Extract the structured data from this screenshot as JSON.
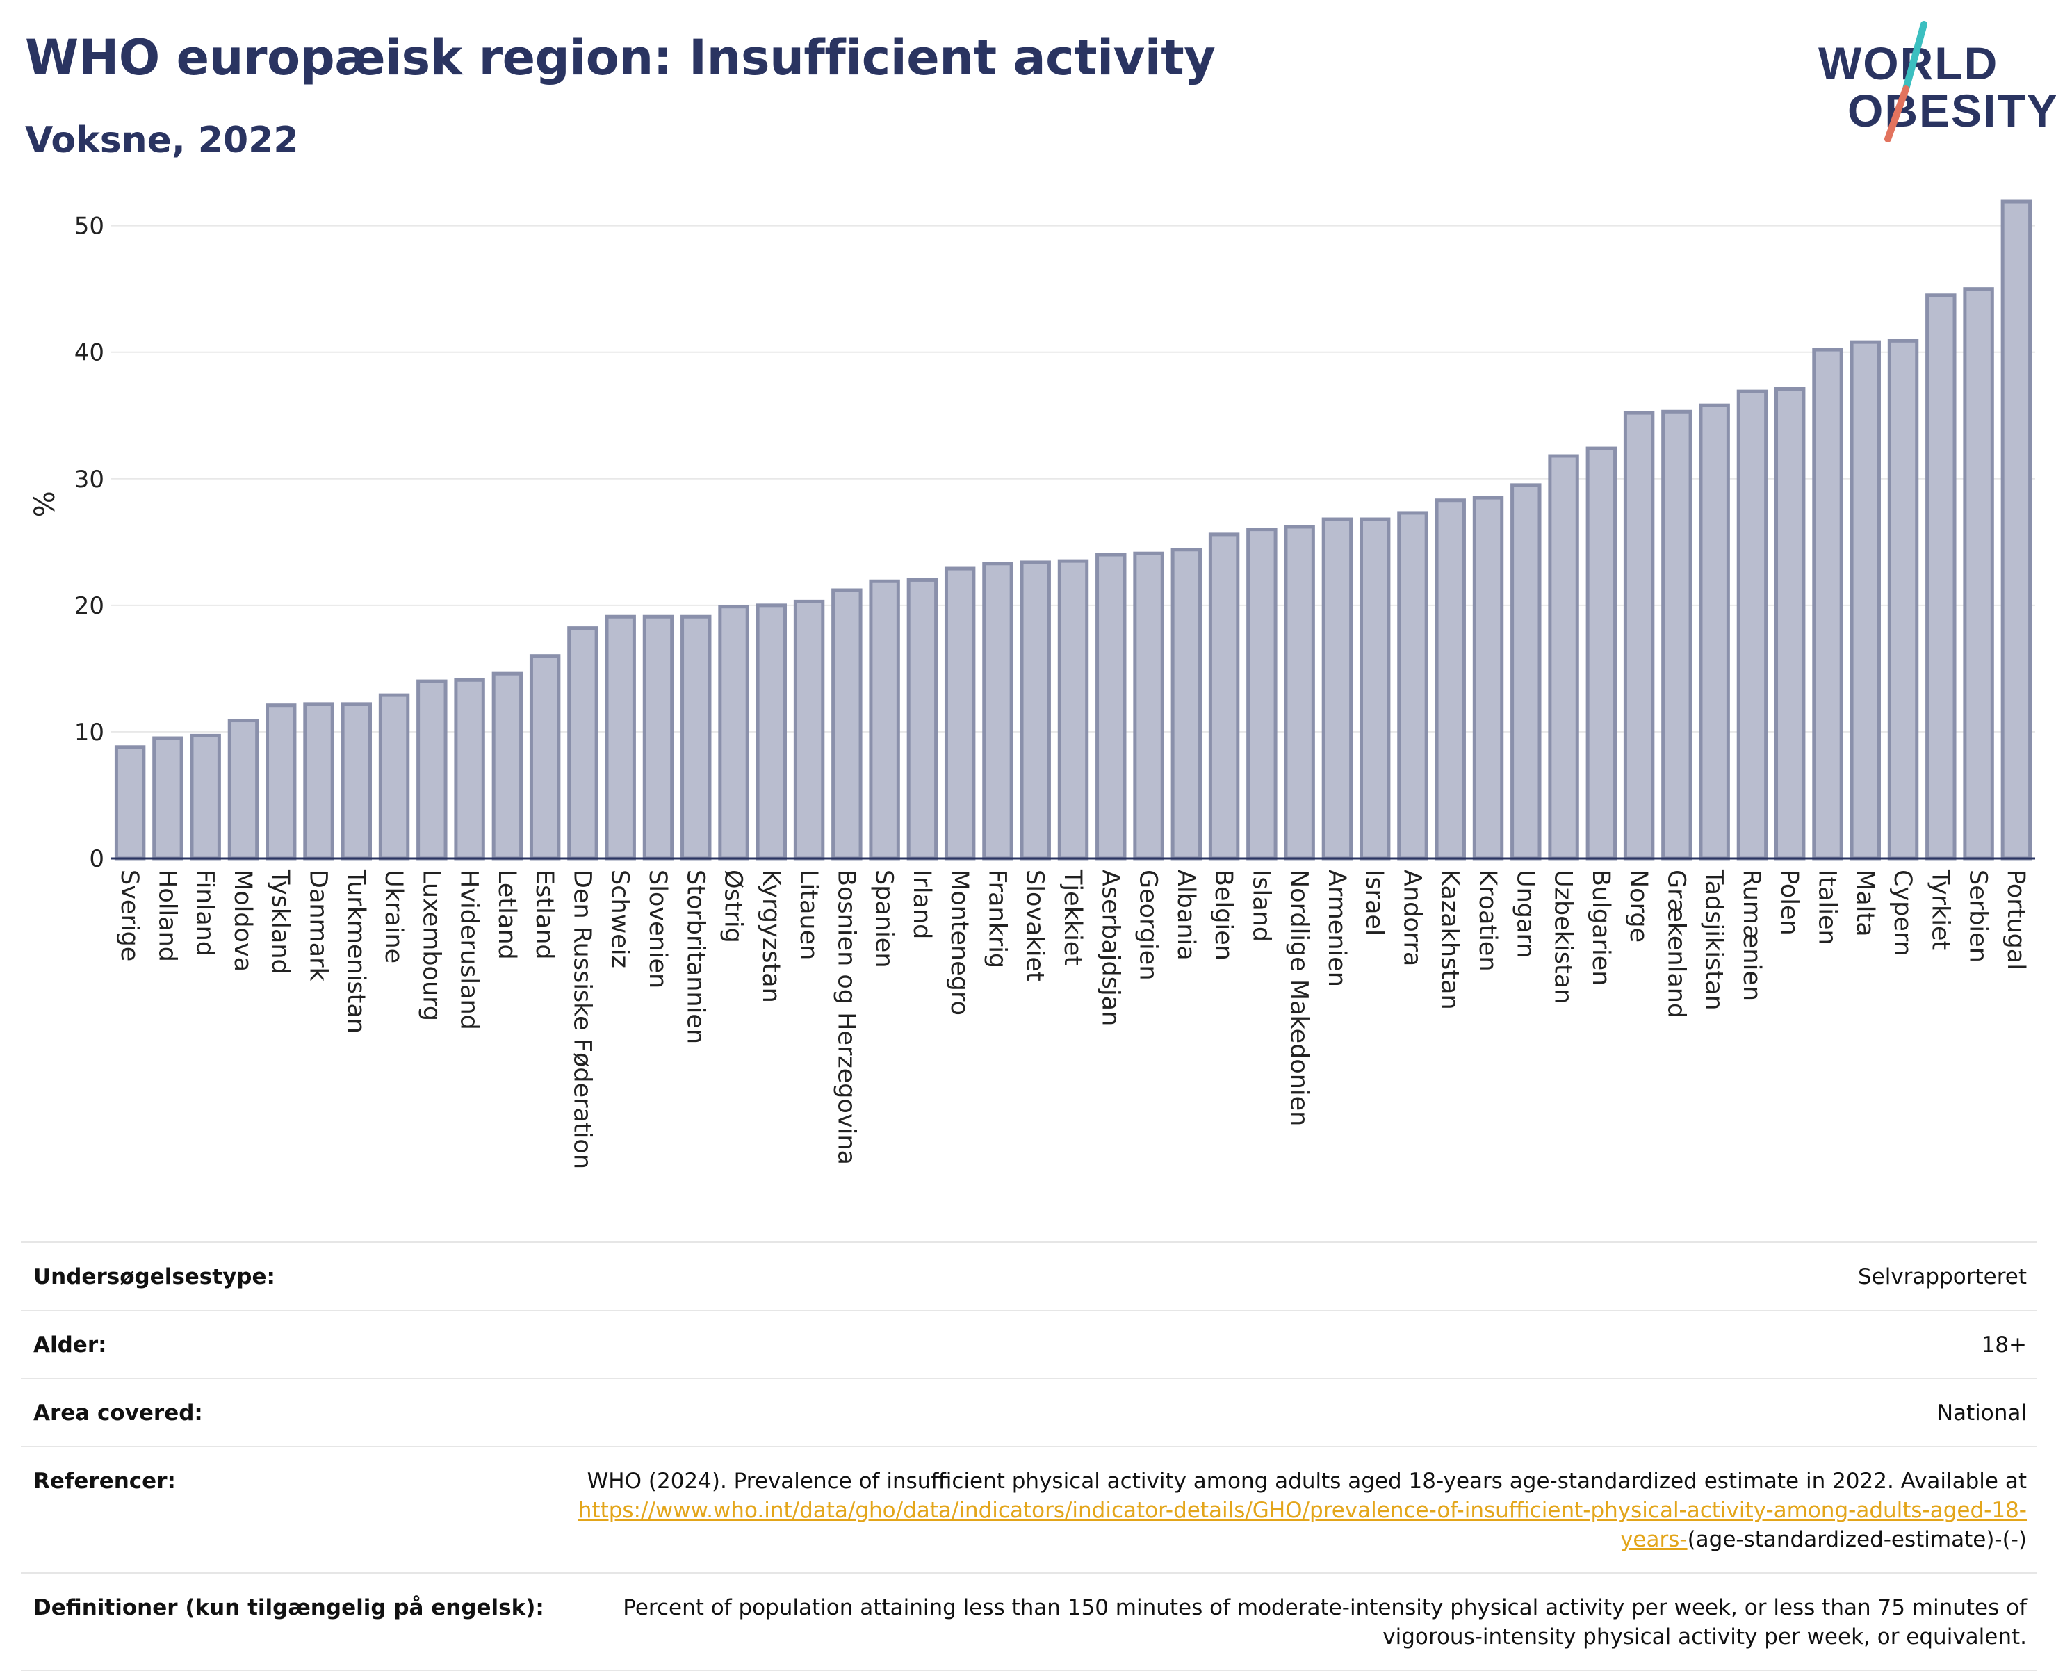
{
  "header": {
    "title": "WHO europæisk region: Insufficient activity",
    "subtitle": "Voksne, 2022"
  },
  "logo": {
    "line1": "WORLD",
    "line2": "OBESITY",
    "colors": {
      "text": "#2a3461",
      "slash_top": "#3bbfc0",
      "slash_bottom": "#e2735e"
    }
  },
  "chart_data": {
    "type": "bar",
    "ylabel": "%",
    "ylim": [
      0,
      53
    ],
    "yticks": [
      0,
      10,
      20,
      30,
      40,
      50
    ],
    "grid": true,
    "bar_color": "#b9bdcf",
    "bar_edge_color": "#8a90ab",
    "categories": [
      "Sverige",
      "Holland",
      "Finland",
      "Moldova",
      "Tyskland",
      "Danmark",
      "Turkmenistan",
      "Ukraine",
      "Luxembourg",
      "Hviderusland",
      "Letland",
      "Estland",
      "Den Russiske Føderation",
      "Schweiz",
      "Slovenien",
      "Storbritannien",
      "Østrig",
      "Kyrgyzstan",
      "Litauen",
      "Bosnien og Herzegovina",
      "Spanien",
      "Irland",
      "Montenegro",
      "Frankrig",
      "Slovakiet",
      "Tjekkiet",
      "Aserbajdsjan",
      "Georgien",
      "Albania",
      "Belgien",
      "Island",
      "Nordlige Makedonien",
      "Armenien",
      "Israel",
      "Andorra",
      "Kazakhstan",
      "Kroatien",
      "Ungarn",
      "Uzbekistan",
      "Bulgarien",
      "Norge",
      "Grækenland",
      "Tadsjikistan",
      "Rumænien",
      "Polen",
      "Italien",
      "Malta",
      "Cypern",
      "Tyrkiet",
      "Serbien",
      "Portugal"
    ],
    "values": [
      8.8,
      9.5,
      9.7,
      10.9,
      12.1,
      12.2,
      12.2,
      12.9,
      14.0,
      14.1,
      14.6,
      16.0,
      18.2,
      19.1,
      19.1,
      19.1,
      19.9,
      20.0,
      20.3,
      21.2,
      21.9,
      22.0,
      22.9,
      23.3,
      23.4,
      23.5,
      24.0,
      24.1,
      24.4,
      25.6,
      26.0,
      26.2,
      26.8,
      26.8,
      27.3,
      28.3,
      28.5,
      29.5,
      31.8,
      32.4,
      35.2,
      35.3,
      35.8,
      36.9,
      37.1,
      40.2,
      40.8,
      40.9,
      44.5,
      45.0,
      51.9
    ]
  },
  "info": {
    "survey_label": "Undersøgelsestype:",
    "survey_value": "Selvrapporteret",
    "age_label": "Alder:",
    "age_value": "18+",
    "area_label": "Area covered:",
    "area_value": "National",
    "ref_label": "Referencer:",
    "ref_text": "WHO (2024). Prevalence of insufficient physical activity among adults aged 18-years age-standardized estimate in 2022. Available at",
    "ref_link": "https://www.who.int/data/gho/data/indicators/indicator-details/GHO/prevalence-of-insufficient-physical-activity-among-adults-aged-18-years-",
    "ref_suffix": "(age-standardized-estimate)-(-)",
    "def_label": "Definitioner (kun tilgængelig på engelsk):",
    "def_value": "Percent of population attaining less than 150 minutes of moderate-intensity physical activity per week, or less than 75 minutes of vigorous-intensity physical activity per week, or equivalent."
  }
}
